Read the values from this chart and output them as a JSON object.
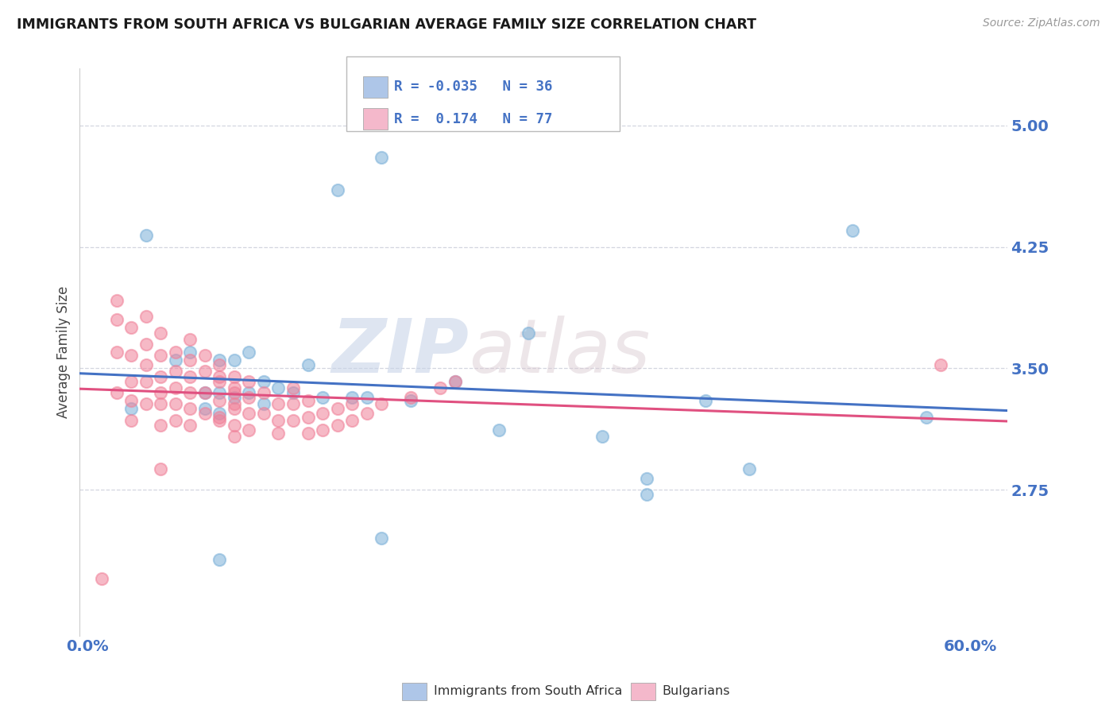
{
  "title": "IMMIGRANTS FROM SOUTH AFRICA VS BULGARIAN AVERAGE FAMILY SIZE CORRELATION CHART",
  "source": "Source: ZipAtlas.com",
  "ylabel": "Average Family Size",
  "x_ticks": [
    0.0,
    0.1,
    0.2,
    0.3,
    0.4,
    0.5,
    0.6
  ],
  "x_tick_labels": [
    "0.0%",
    "",
    "",
    "",
    "",
    "",
    "60.0%"
  ],
  "y_ticks": [
    2.75,
    3.5,
    4.25,
    5.0
  ],
  "y_lim": [
    1.85,
    5.35
  ],
  "x_lim": [
    -0.005,
    0.625
  ],
  "legend_labels": [
    "Immigrants from South Africa",
    "Bulgarians"
  ],
  "r_values": [
    -0.035,
    0.174
  ],
  "n_values": [
    36,
    77
  ],
  "blue_legend_color": "#aec6e8",
  "pink_legend_color": "#f4b8cb",
  "blue_line_color": "#4472c4",
  "pink_line_color": "#e05080",
  "blue_dot_color": "#7ab0d8",
  "pink_dot_color": "#f08098",
  "watermark_zip": "ZIP",
  "watermark_atlas": "atlas",
  "blue_points_x": [
    0.03,
    0.04,
    0.06,
    0.07,
    0.08,
    0.08,
    0.09,
    0.09,
    0.09,
    0.1,
    0.1,
    0.11,
    0.11,
    0.12,
    0.12,
    0.13,
    0.14,
    0.15,
    0.16,
    0.17,
    0.18,
    0.19,
    0.2,
    0.22,
    0.25,
    0.28,
    0.3,
    0.35,
    0.38,
    0.42,
    0.45,
    0.52,
    0.57,
    0.38,
    0.2,
    0.09
  ],
  "blue_points_y": [
    3.25,
    4.32,
    3.55,
    3.6,
    3.35,
    3.25,
    3.35,
    3.22,
    3.55,
    3.32,
    3.55,
    3.35,
    3.6,
    3.42,
    3.28,
    3.38,
    3.35,
    3.52,
    3.32,
    4.6,
    3.32,
    3.32,
    4.8,
    3.3,
    3.42,
    3.12,
    3.72,
    3.08,
    2.82,
    3.3,
    2.88,
    4.35,
    3.2,
    2.72,
    2.45,
    2.32
  ],
  "pink_points_x": [
    0.01,
    0.02,
    0.02,
    0.02,
    0.03,
    0.03,
    0.03,
    0.03,
    0.03,
    0.04,
    0.04,
    0.04,
    0.04,
    0.05,
    0.05,
    0.05,
    0.05,
    0.05,
    0.05,
    0.06,
    0.06,
    0.06,
    0.06,
    0.06,
    0.07,
    0.07,
    0.07,
    0.07,
    0.07,
    0.07,
    0.08,
    0.08,
    0.08,
    0.08,
    0.09,
    0.09,
    0.09,
    0.09,
    0.09,
    0.09,
    0.1,
    0.1,
    0.1,
    0.1,
    0.1,
    0.1,
    0.1,
    0.11,
    0.11,
    0.11,
    0.11,
    0.12,
    0.12,
    0.13,
    0.13,
    0.13,
    0.14,
    0.14,
    0.14,
    0.15,
    0.15,
    0.15,
    0.16,
    0.16,
    0.17,
    0.17,
    0.18,
    0.18,
    0.19,
    0.2,
    0.22,
    0.24,
    0.25,
    0.58,
    0.04,
    0.02,
    0.05
  ],
  "pink_points_y": [
    2.2,
    3.8,
    3.6,
    3.35,
    3.75,
    3.58,
    3.42,
    3.3,
    3.18,
    3.65,
    3.52,
    3.42,
    3.28,
    3.72,
    3.58,
    3.45,
    3.35,
    3.28,
    3.15,
    3.6,
    3.48,
    3.38,
    3.28,
    3.18,
    3.68,
    3.55,
    3.45,
    3.35,
    3.25,
    3.15,
    3.58,
    3.48,
    3.35,
    3.22,
    3.52,
    3.42,
    3.3,
    3.2,
    3.45,
    3.18,
    3.45,
    3.35,
    3.25,
    3.15,
    3.08,
    3.38,
    3.28,
    3.42,
    3.32,
    3.22,
    3.12,
    3.35,
    3.22,
    3.28,
    3.18,
    3.1,
    3.38,
    3.28,
    3.18,
    3.3,
    3.2,
    3.1,
    3.22,
    3.12,
    3.25,
    3.15,
    3.28,
    3.18,
    3.22,
    3.28,
    3.32,
    3.38,
    3.42,
    3.52,
    3.82,
    3.92,
    2.88
  ]
}
